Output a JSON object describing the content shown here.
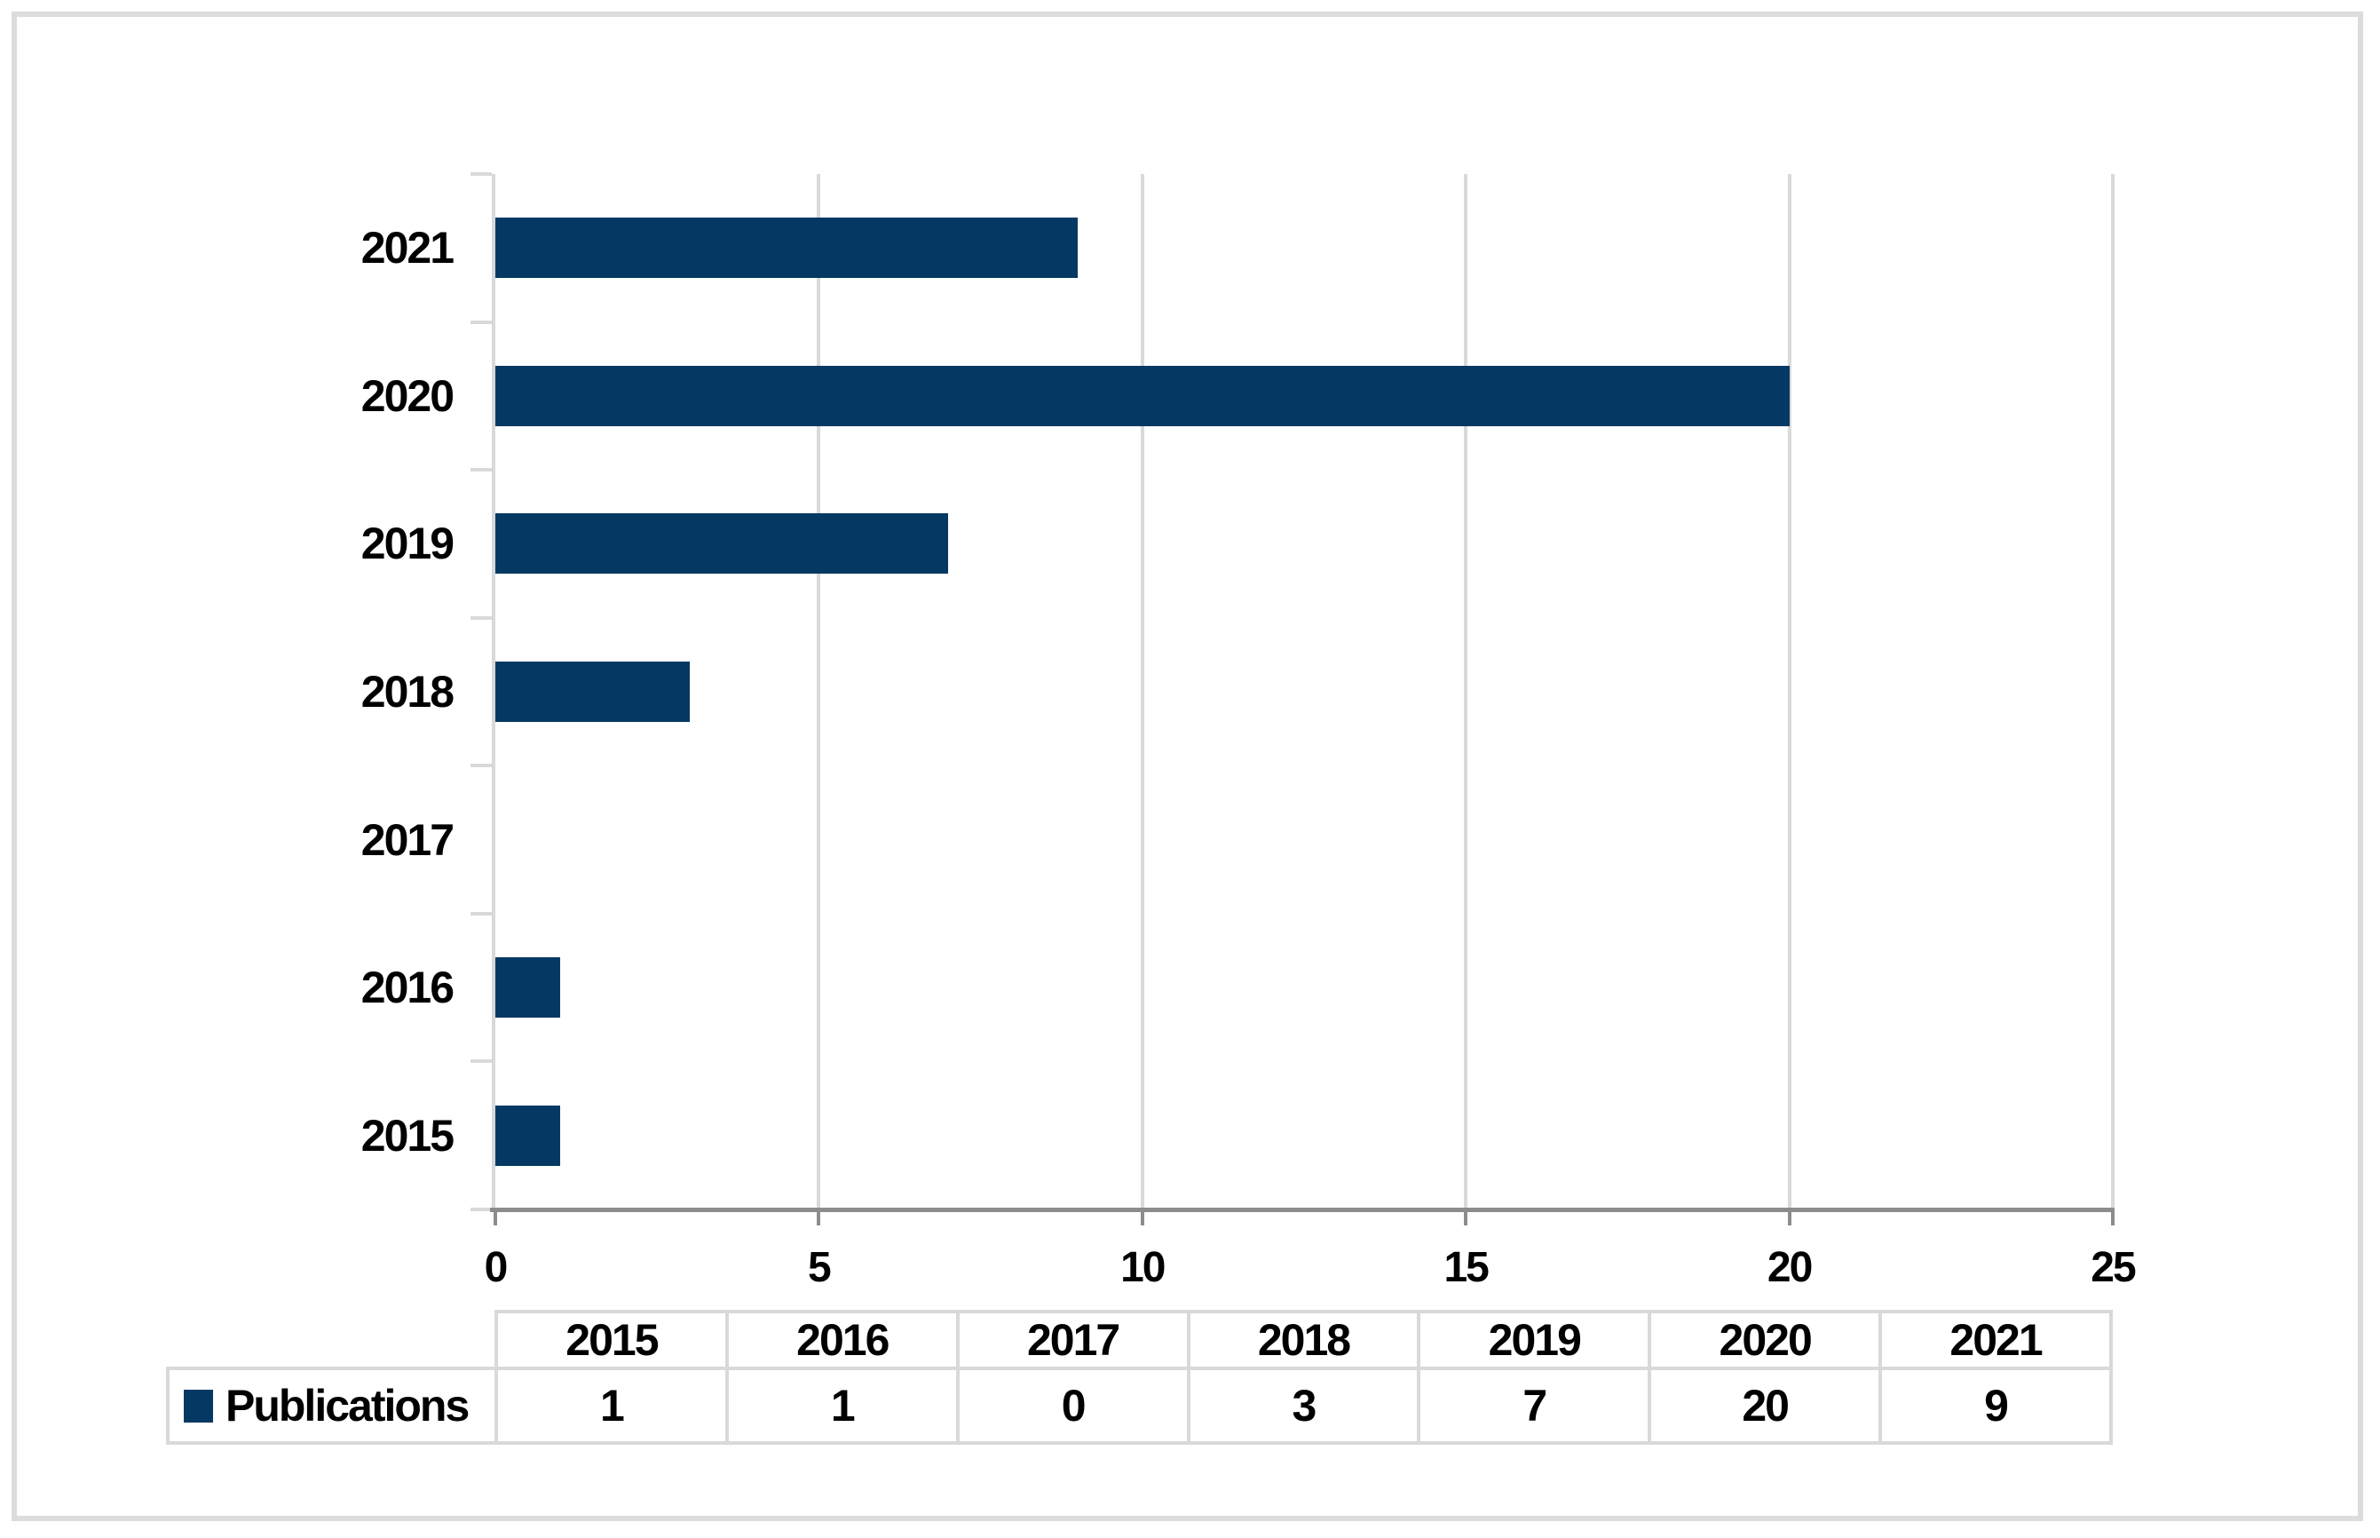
{
  "chart_data": {
    "type": "bar",
    "orientation": "horizontal",
    "title": "",
    "categories": [
      "2015",
      "2016",
      "2017",
      "2018",
      "2019",
      "2020",
      "2021"
    ],
    "series": [
      {
        "name": "Publications",
        "values": [
          1,
          1,
          0,
          3,
          7,
          20,
          9
        ]
      }
    ],
    "category_order_top_to_bottom": [
      "2021",
      "2020",
      "2019",
      "2018",
      "2017",
      "2016",
      "2015"
    ],
    "x_axis": {
      "min": 0,
      "max": 25,
      "ticks": [
        0,
        5,
        10,
        15,
        20,
        25
      ]
    },
    "grid": "vertical-major-on",
    "legend_position": "bottom-table",
    "colors": {
      "bar": "#053963",
      "gridline": "#d9d9d9",
      "y_axis": "#d9d9d9",
      "x_axis": "#8c8c8c",
      "table_border": "#d9d9d9",
      "text": "#000000",
      "outer_border": "#dcdcdc",
      "background": "#ffffff"
    }
  },
  "data_table": {
    "legend_label": "Publications",
    "columns": [
      "2015",
      "2016",
      "2017",
      "2018",
      "2019",
      "2020",
      "2021"
    ],
    "rows": [
      {
        "label": "Publications",
        "values": [
          "1",
          "1",
          "0",
          "3",
          "7",
          "20",
          "9"
        ]
      }
    ]
  }
}
